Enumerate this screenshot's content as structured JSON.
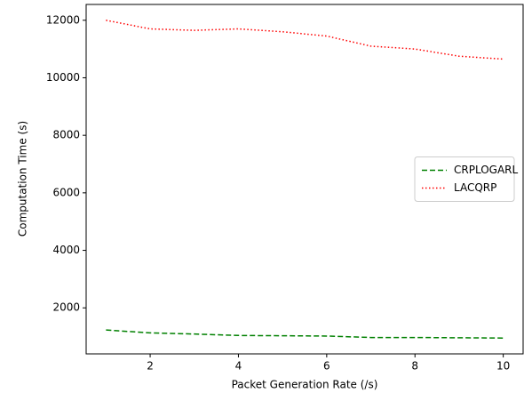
{
  "chart_data": {
    "type": "line",
    "xlabel": "Packet Generation Rate (/s)",
    "ylabel": "Computation Time (s)",
    "x": [
      1,
      2,
      3,
      4,
      5,
      6,
      7,
      8,
      9,
      10
    ],
    "series": [
      {
        "name": "CRPLOGARL",
        "color": "#008000",
        "linestyle": "dashed",
        "values": [
          1230,
          1130,
          1090,
          1040,
          1030,
          1020,
          970,
          970,
          960,
          950
        ]
      },
      {
        "name": "LACQRP",
        "color": "#ff0000",
        "linestyle": "dotted",
        "values": [
          12000,
          11700,
          11650,
          11700,
          11600,
          11450,
          11100,
          11000,
          10750,
          10650
        ]
      }
    ],
    "xlim": [
      0.55,
      10.45
    ],
    "xticks": [
      2,
      4,
      6,
      8,
      10
    ],
    "ylim": [
      400,
      12550
    ],
    "yticks": [
      2000,
      4000,
      6000,
      8000,
      10000,
      12000
    ],
    "legend": "center right"
  }
}
